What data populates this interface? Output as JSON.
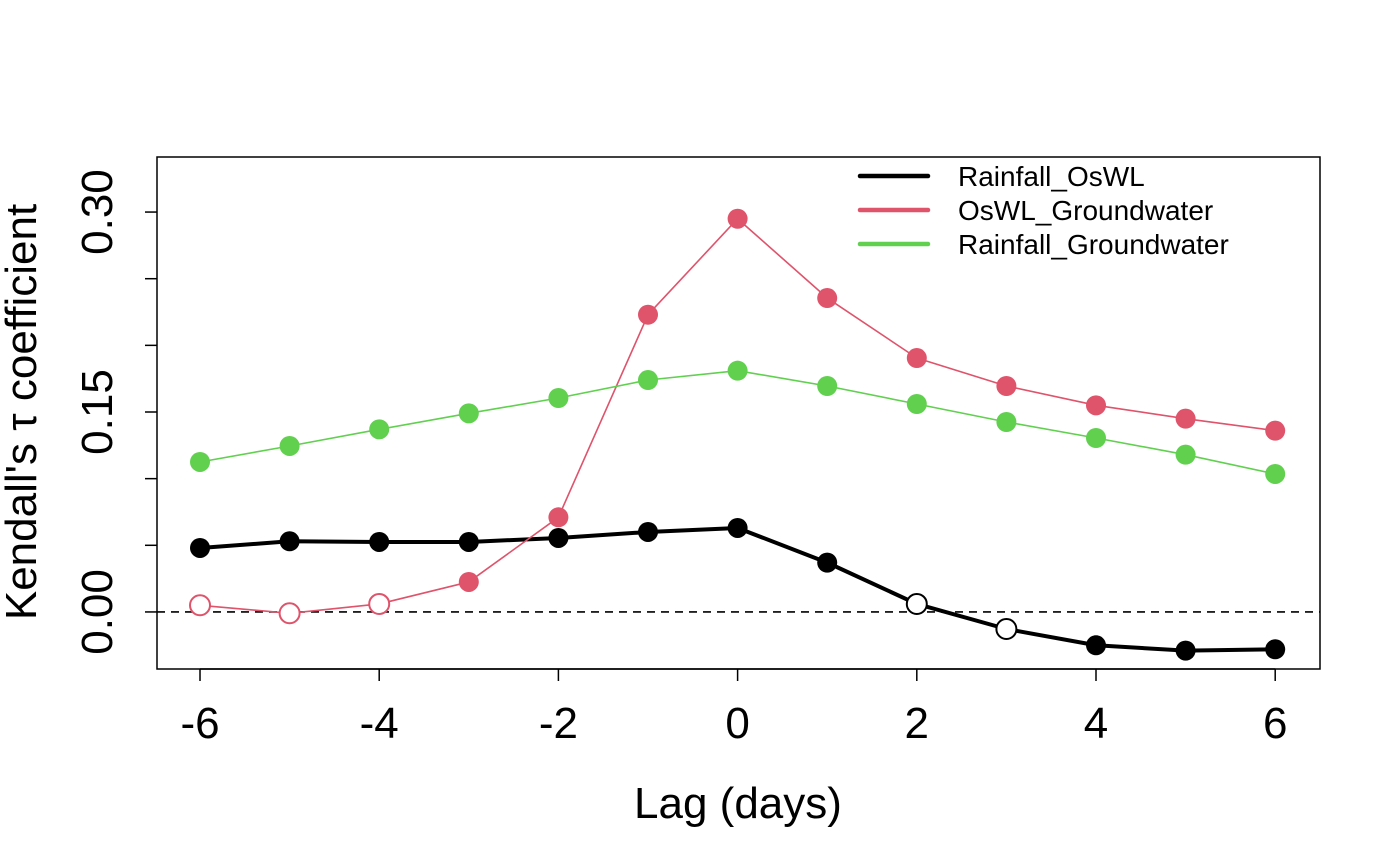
{
  "chart_data": {
    "type": "line",
    "title": "",
    "xlabel": "Lag (days)",
    "ylabel": "Kendall's τ coefficient",
    "x": [
      -6,
      -5,
      -4,
      -3,
      -2,
      -1,
      0,
      1,
      2,
      3,
      4,
      5,
      6
    ],
    "xlim": [
      -6.48,
      6.5
    ],
    "ylim": [
      -0.0428,
      0.3413
    ],
    "xticks": [
      -6,
      -4,
      -2,
      0,
      2,
      4,
      6
    ],
    "xtick_labels": [
      "-6",
      "-4",
      "-2",
      "0",
      "2",
      "4",
      "6"
    ],
    "yticks": [
      0,
      0.05,
      0.1,
      0.15,
      0.2,
      0.25,
      0.3
    ],
    "ytick_labels": [
      {
        "value": 0,
        "label": "0.00"
      },
      {
        "value": 0.15,
        "label": "0.15"
      },
      {
        "value": 0.3,
        "label": "0.30"
      }
    ],
    "reference_line": {
      "y": 0,
      "style": "dashed"
    },
    "legend_position": "top-right",
    "series": [
      {
        "name": "Rainfall_OsWL",
        "color": "#000000",
        "width": 4,
        "values": [
          0.048,
          0.053,
          0.0525,
          0.0525,
          0.0555,
          0.06,
          0.063,
          0.037,
          0.006,
          -0.0128,
          -0.025,
          -0.029,
          -0.028
        ],
        "filled": [
          true,
          true,
          true,
          true,
          true,
          true,
          true,
          true,
          false,
          false,
          true,
          true,
          true
        ]
      },
      {
        "name": "OsWL_Groundwater",
        "color": "#DF536B",
        "width": 1.6,
        "values": [
          0.005,
          -0.001,
          0.006,
          0.0225,
          0.071,
          0.223,
          0.295,
          0.2355,
          0.1905,
          0.1695,
          0.155,
          0.145,
          0.136
        ],
        "filled": [
          false,
          false,
          false,
          true,
          true,
          true,
          true,
          true,
          true,
          true,
          true,
          true,
          true
        ]
      },
      {
        "name": "Rainfall_Groundwater",
        "color": "#61D04F",
        "width": 1.6,
        "values": [
          0.1125,
          0.1245,
          0.137,
          0.149,
          0.1605,
          0.174,
          0.181,
          0.1695,
          0.156,
          0.1425,
          0.1305,
          0.118,
          0.1035
        ],
        "filled": [
          true,
          true,
          true,
          true,
          true,
          true,
          true,
          true,
          true,
          true,
          true,
          true,
          true
        ]
      }
    ]
  }
}
